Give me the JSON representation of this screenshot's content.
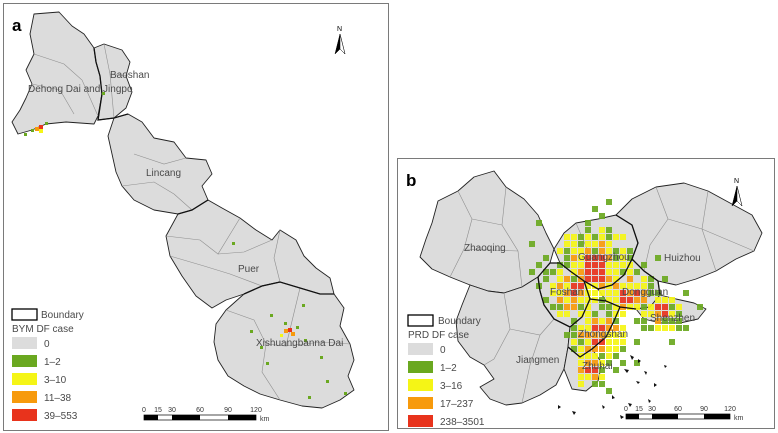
{
  "panel_a": {
    "letter": "a",
    "north": "N",
    "places": [
      "Dehong Dai and Jingpo",
      "Baoshan",
      "Lincang",
      "Puer",
      "Xishuangbanna Dai"
    ],
    "legend": {
      "boundary": "Boundary",
      "title": "BYM DF case",
      "classes": [
        {
          "label": "0",
          "color": "#dcdcdc"
        },
        {
          "label": "1–2",
          "color": "#6aa820"
        },
        {
          "label": "3–10",
          "color": "#f5f516"
        },
        {
          "label": "11–38",
          "color": "#f79a0c"
        },
        {
          "label": "39–553",
          "color": "#e8331c"
        }
      ]
    },
    "scale": {
      "ticks": [
        "0",
        "15",
        "30",
        "60",
        "90",
        "120"
      ],
      "unit": "km"
    }
  },
  "panel_b": {
    "letter": "b",
    "north": "N",
    "places": [
      "Zhaoqing",
      "Guangzhou",
      "Huizhou",
      "Foshan",
      "Dongguan",
      "Shenzhen",
      "Zhongshan",
      "Jiangmen",
      "Zhuhai"
    ],
    "legend": {
      "boundary": "Boundary",
      "title": "PRD DF case",
      "classes": [
        {
          "label": "0",
          "color": "#dcdcdc"
        },
        {
          "label": "1–2",
          "color": "#6aa820"
        },
        {
          "label": "3–16",
          "color": "#f5f516"
        },
        {
          "label": "17–237",
          "color": "#f79a0c"
        },
        {
          "label": "238–3501",
          "color": "#e8331c"
        }
      ]
    },
    "scale": {
      "ticks": [
        "0",
        "15",
        "30",
        "60",
        "90",
        "120"
      ],
      "unit": "km"
    }
  }
}
